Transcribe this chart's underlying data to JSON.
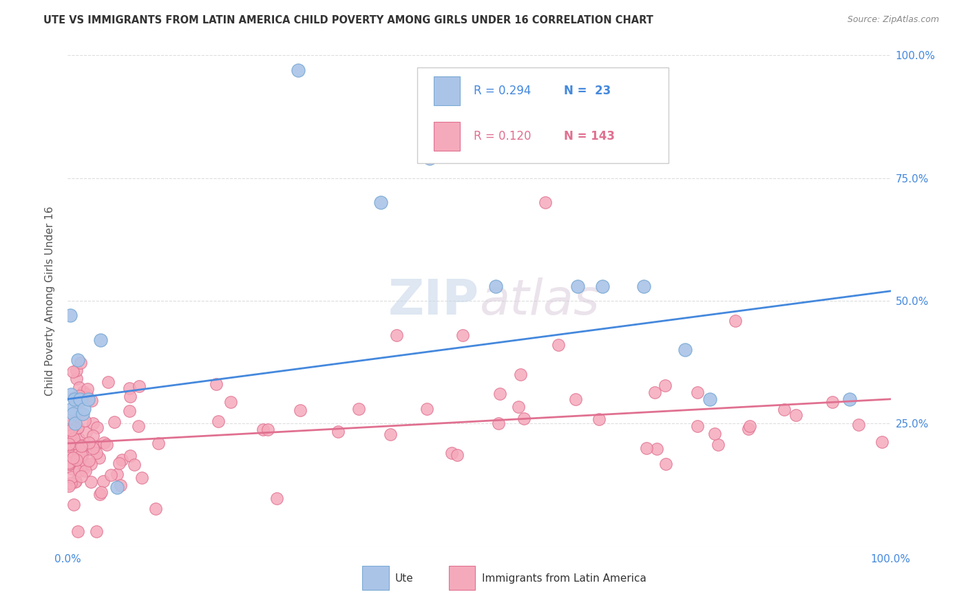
{
  "title": "UTE VS IMMIGRANTS FROM LATIN AMERICA CHILD POVERTY AMONG GIRLS UNDER 16 CORRELATION CHART",
  "source": "Source: ZipAtlas.com",
  "ylabel": "Child Poverty Among Girls Under 16",
  "watermark": "ZIPatlas",
  "legend_r1": "R = 0.294",
  "legend_n1": "N =  23",
  "legend_r2": "R = 0.120",
  "legend_n2": "N = 143",
  "series1_color": "#aac4e8",
  "series1_edge": "#7aaad4",
  "series2_color": "#f5aabb",
  "series2_edge": "#e07090",
  "line1_color": "#4488dd",
  "line2_color": "#e07090",
  "title_color": "#333333",
  "source_color": "#888888",
  "tick_color": "#4488dd",
  "ylabel_color": "#555555",
  "grid_color": "#dddddd",
  "bg_color": "#ffffff"
}
